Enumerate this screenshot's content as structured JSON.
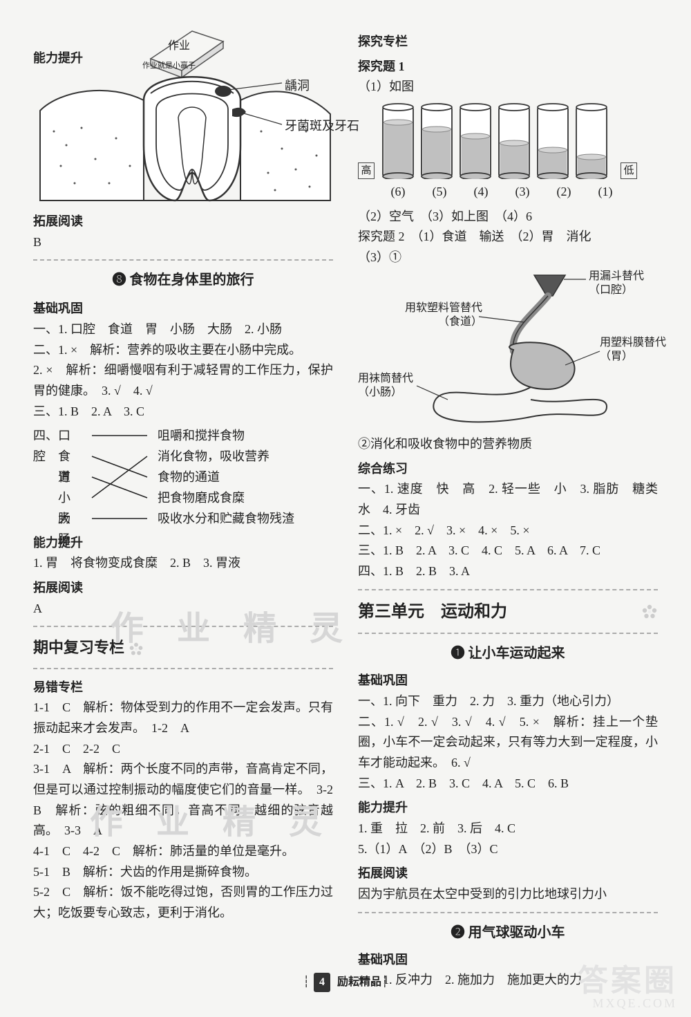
{
  "left": {
    "ability_heading": "能力提升",
    "tooth": {
      "top_label": "作业",
      "top_sub": "作业就是小赢子",
      "cavity_label": "龋洞",
      "plaque_label": "牙菌斑及牙石"
    },
    "ext_reading": "拓展阅读",
    "ext_reading_answer": "B",
    "s8_title": "❽ 食物在身体里的旅行",
    "s8_basics": "基础巩固",
    "s8_line1": "一、1. 口腔　食道　胃　小肠　大肠　2. 小肠",
    "s8_line2": "二、1. ×　解析：营养的吸收主要在小肠中完成。",
    "s8_line3": "2. ×　解析：细嚼慢咽有利于减轻胃的工作压力，保护胃的健康。　3. √　4. √",
    "s8_line4": "三、1. B　2. A　3. C",
    "s8_match_head": "四、",
    "match": {
      "left": [
        "口腔",
        "食道",
        "胃",
        "小肠",
        "大肠"
      ],
      "right": [
        "咀嚼和搅拌食物",
        "消化食物，吸收营养",
        "食物的通道",
        "把食物磨成食糜",
        "吸收水分和贮藏食物残渣"
      ]
    },
    "s8_ability": "能力提升",
    "s8_ability_line": "1. 胃　将食物变成食糜　2. B　3. 胃液",
    "s8_ext": "拓展阅读",
    "s8_ext_ans": "A",
    "midterm_title": "期中复习专栏",
    "err_heading": "易错专栏",
    "err1": "1-1　C　解析：物体受到力的作用不一定会发声。只有振动起来才会发声。　1-2　A",
    "err2": "2-1　C　2-2　C",
    "err3": "3-1　A　解析：两个长度不同的声带，音高肯定不同，但是可以通过控制振动的幅度使它们的音量一样。　3-2　B　解析：弦的粗细不同，音高不同，越细的弦音越高。　3-3　A",
    "err4": "4-1　C　4-2　C　解析：肺活量的单位是毫升。",
    "err5a": "5-1　B　解析：犬齿的作用是撕碎食物。",
    "err5b": "5-2　C　解析：饭不能吃得过饱，否则胃的工作压力过大；吃饭要专心致志，更利于消化。"
  },
  "right": {
    "inquiry_heading": "探究专栏",
    "q1_title": "探究题 1",
    "q1_1": "（1）如图",
    "tubes": {
      "high": "高",
      "low": "低",
      "fill_levels": [
        0.78,
        0.68,
        0.58,
        0.48,
        0.38,
        0.28
      ],
      "labels": [
        "(6)",
        "(5)",
        "(4)",
        "(3)",
        "(2)",
        "(1)"
      ]
    },
    "q1_rest": "（2）空气　（3）如上图　（4）6",
    "q2_title": "探究题 2　（1）食道　输送　（2）胃　消化",
    "q2_3": "（3）①",
    "digestive": {
      "funnel": "用漏斗替代（口腔）",
      "tube": "用软塑料管替代（食道）",
      "bag": "用塑料膜替代（胃）",
      "sock": "用袜筒替代（小肠）"
    },
    "q2_note": "②消化和吸收食物中的营养物质",
    "comp_heading": "综合练习",
    "comp1": "一、1. 速度　快　高　2. 轻一些　小　3. 脂肪　糖类　水　4. 牙齿",
    "comp2": "二、1. ×　2. √　3. ×　4. ×　5. ×",
    "comp3": "三、1. B　2. A　3. C　4. C　5. A　6. A　7. C",
    "comp4": "四、1. B　2. B　3. A",
    "unit3_title": "第三单元　运动和力",
    "u3s1_title": "❶ 让小车运动起来",
    "u3s1_basics": "基础巩固",
    "u3s1_l1": "一、1. 向下　重力　2. 力　3. 重力（地心引力）",
    "u3s1_l2": "二、1. √　2. √　3. √　4. √　5. ×　解析：挂上一个垫圈，小车不一定会动起来，只有等力大到一定程度，小车才能动起来。　6. √",
    "u3s1_l3": "三、1. A　2. B　3. C　4. A　5. C　6. B",
    "u3s1_ability": "能力提升",
    "u3s1_al1": "1. 重　拉　2. 前　3. 后　4. C",
    "u3s1_al2": "5.（1）A　（2）B　（3）C",
    "u3s1_ext": "拓展阅读",
    "u3s1_ext_ans": "因为宇航员在太空中受到的引力比地球引力小",
    "u3s2_title": "❷ 用气球驱动小车",
    "u3s2_basics": "基础巩固",
    "u3s2_l1": "一、1. 反冲力　2. 施加力　施加更大的力"
  },
  "footer": {
    "page": "4",
    "brand": "励耘精品"
  },
  "watermarks": {
    "wm1": "作 业 精 灵",
    "wm2": "作 业 精 灵",
    "br_big": "答案圈",
    "br_sm": "MXQE.COM"
  },
  "colors": {
    "ink": "#222222",
    "dash": "#aaaaaa",
    "tube_stroke": "#333333",
    "tube_fill": "#c0c0c0"
  }
}
